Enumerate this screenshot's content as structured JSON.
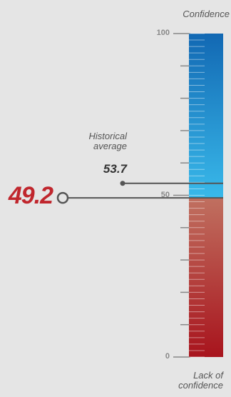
{
  "chart_data": {
    "type": "gauge",
    "ylim": [
      0,
      100
    ],
    "tick_labels": [
      "100",
      "50",
      "0"
    ],
    "top_label": "Confidence",
    "bottom_label": "Lack of confidence",
    "current": {
      "value": 49.2,
      "label": "49.2"
    },
    "historical_average": {
      "label": "Historical average",
      "value": 53.7,
      "value_label": "53.7"
    },
    "colors": {
      "blue_top": "#1268b3",
      "blue_bottom": "#39b9ea",
      "red_top": "#c07060",
      "red_bottom": "#a8141d",
      "current": "#c0262d",
      "marker": "#555555"
    }
  }
}
